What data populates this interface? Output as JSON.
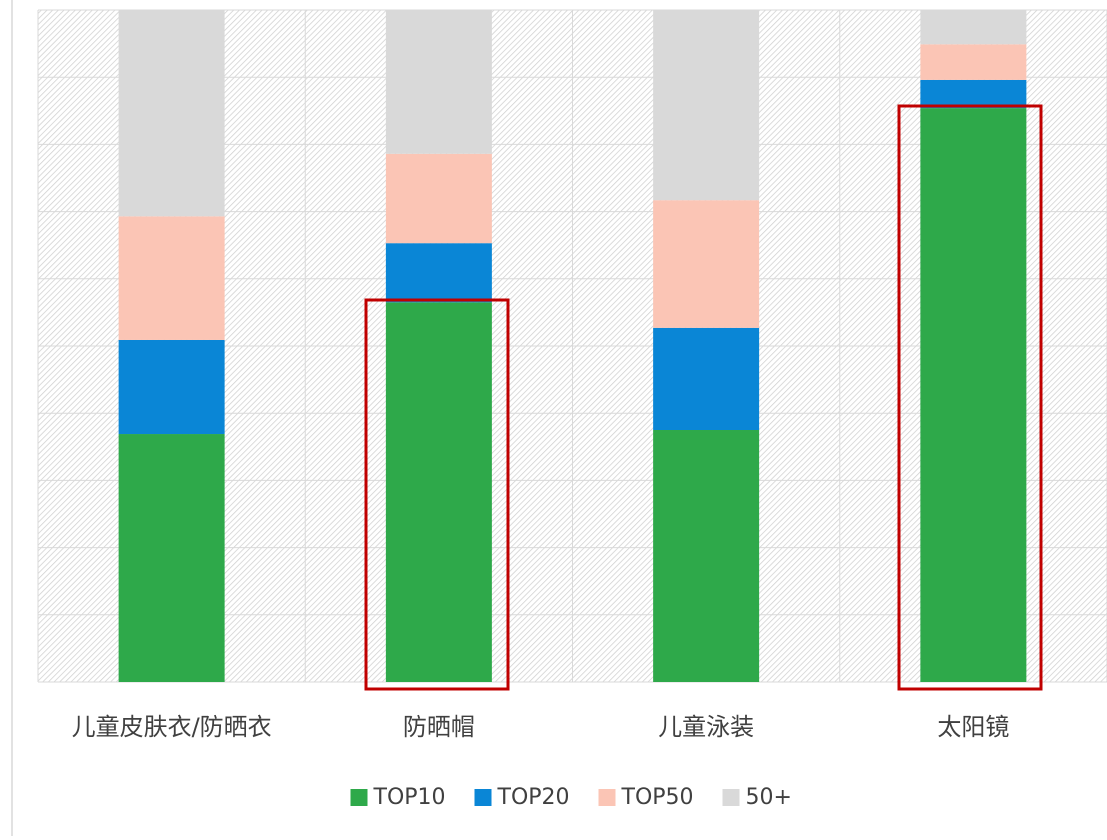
{
  "chart_data": {
    "type": "stacked_bar",
    "categories": [
      "儿童皮肤衣/防晒衣",
      "防晒帽",
      "儿童泳装",
      "太阳镜"
    ],
    "series": [
      {
        "name": "TOP10",
        "color": "#2ea94a",
        "values": [
          36.9,
          56.5,
          37.5,
          85.4
        ]
      },
      {
        "name": "TOP20",
        "color": "#0a86d6",
        "values": [
          14.0,
          8.8,
          15.2,
          4.2
        ]
      },
      {
        "name": "TOP50",
        "color": "#fbc5b5",
        "values": [
          18.4,
          13.3,
          19.0,
          5.3
        ]
      },
      {
        "name": "50+",
        "color": "#d9d9d9",
        "values": [
          30.7,
          21.4,
          28.3,
          5.1
        ]
      }
    ],
    "ylim": [
      0,
      100
    ],
    "yticks": [
      0,
      10,
      20,
      30,
      40,
      50,
      60,
      70,
      80,
      90,
      100
    ],
    "grid": true,
    "legend": "bottom"
  }
}
